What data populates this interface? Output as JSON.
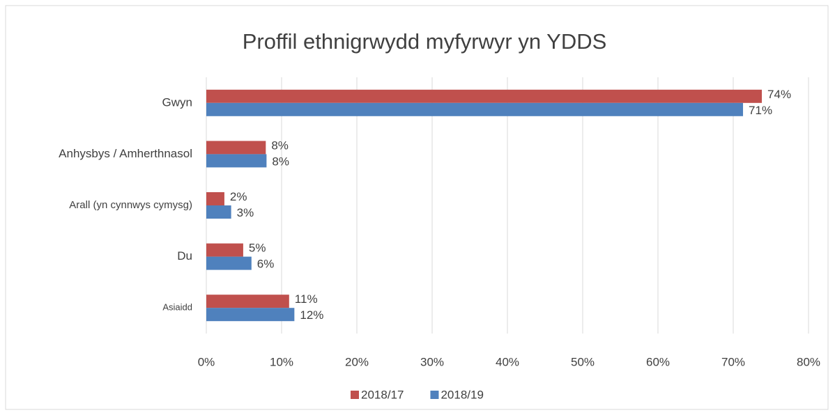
{
  "chart_data": {
    "type": "bar",
    "orientation": "horizontal",
    "title": "Proffil ethnigrwydd myfyrwyr yn YDDS",
    "categories": [
      "Gwyn",
      "Anhysbys / Amherthnasol",
      "Arall (yn cynnwys cymysg)",
      "Du",
      "Asiaidd"
    ],
    "series": [
      {
        "name": "2018/17",
        "color": "#c0504d",
        "values": [
          73.8,
          7.9,
          2.4,
          4.9,
          11.0
        ],
        "value_labels": [
          "74%",
          "8%",
          "2%",
          "5%",
          "11%"
        ]
      },
      {
        "name": "2018/19",
        "color": "#4f81bd",
        "values": [
          71.3,
          8.0,
          3.3,
          6.0,
          11.7
        ],
        "value_labels": [
          "71%",
          "8%",
          "3%",
          "6%",
          "12%"
        ]
      }
    ],
    "xlim": [
      0,
      80
    ],
    "xticks": [
      {
        "value": 0,
        "label": "0%"
      },
      {
        "value": 10,
        "label": "10%"
      },
      {
        "value": 20,
        "label": "20%"
      },
      {
        "value": 30,
        "label": "30%"
      },
      {
        "value": 40,
        "label": "40%"
      },
      {
        "value": 50,
        "label": "50%"
      },
      {
        "value": 60,
        "label": "60%"
      },
      {
        "value": 70,
        "label": "70%"
      },
      {
        "value": 80,
        "label": "80%"
      }
    ],
    "grid": true,
    "legend": "bottom"
  }
}
